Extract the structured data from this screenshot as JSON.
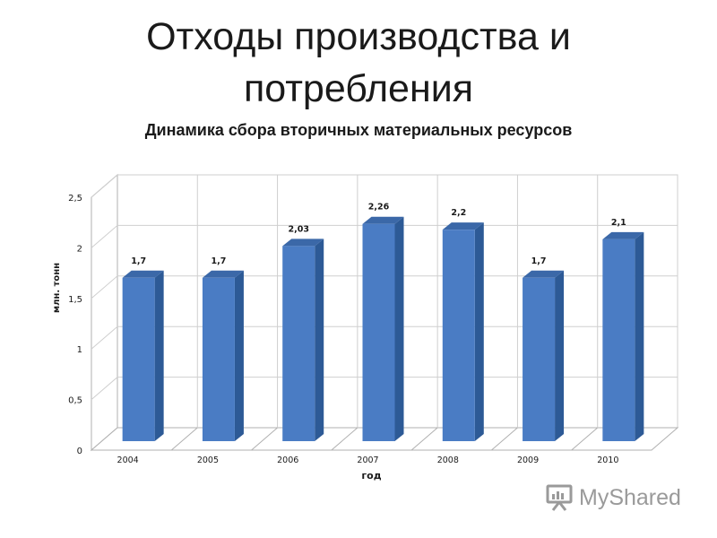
{
  "slide": {
    "title_line1": "Отходы производства и",
    "title_line2": "потребления"
  },
  "watermark": {
    "text": "MyShared",
    "icon": "presentation-board-icon"
  },
  "colors": {
    "bar_front": "#4a7cc4",
    "bar_side": "#2d5a96",
    "bar_top": "#3b68a8",
    "grid": "#cfcfcf",
    "axis_text": "#1a1a1a"
  },
  "chart_data": {
    "type": "bar",
    "title": "Динамика сбора вторичных материальных ресурсов",
    "xlabel": "год",
    "ylabel": "млн. тонн",
    "categories": [
      "2004",
      "2005",
      "2006",
      "2007",
      "2008",
      "2009",
      "2010"
    ],
    "values": [
      1.7,
      1.7,
      2.03,
      2.26,
      2.2,
      1.7,
      2.1
    ],
    "data_labels": [
      "1,7",
      "1,7",
      "2,03",
      "2,26",
      "2,2",
      "1,7",
      "2,1"
    ],
    "ylim": [
      0,
      2.5
    ],
    "yticks": [
      0,
      0.5,
      1,
      1.5,
      2,
      2.5
    ],
    "ytick_labels": [
      "0",
      "0,5",
      "1",
      "1,5",
      "2",
      "2,5"
    ],
    "grid": true,
    "legend": "none",
    "three_d": true
  }
}
